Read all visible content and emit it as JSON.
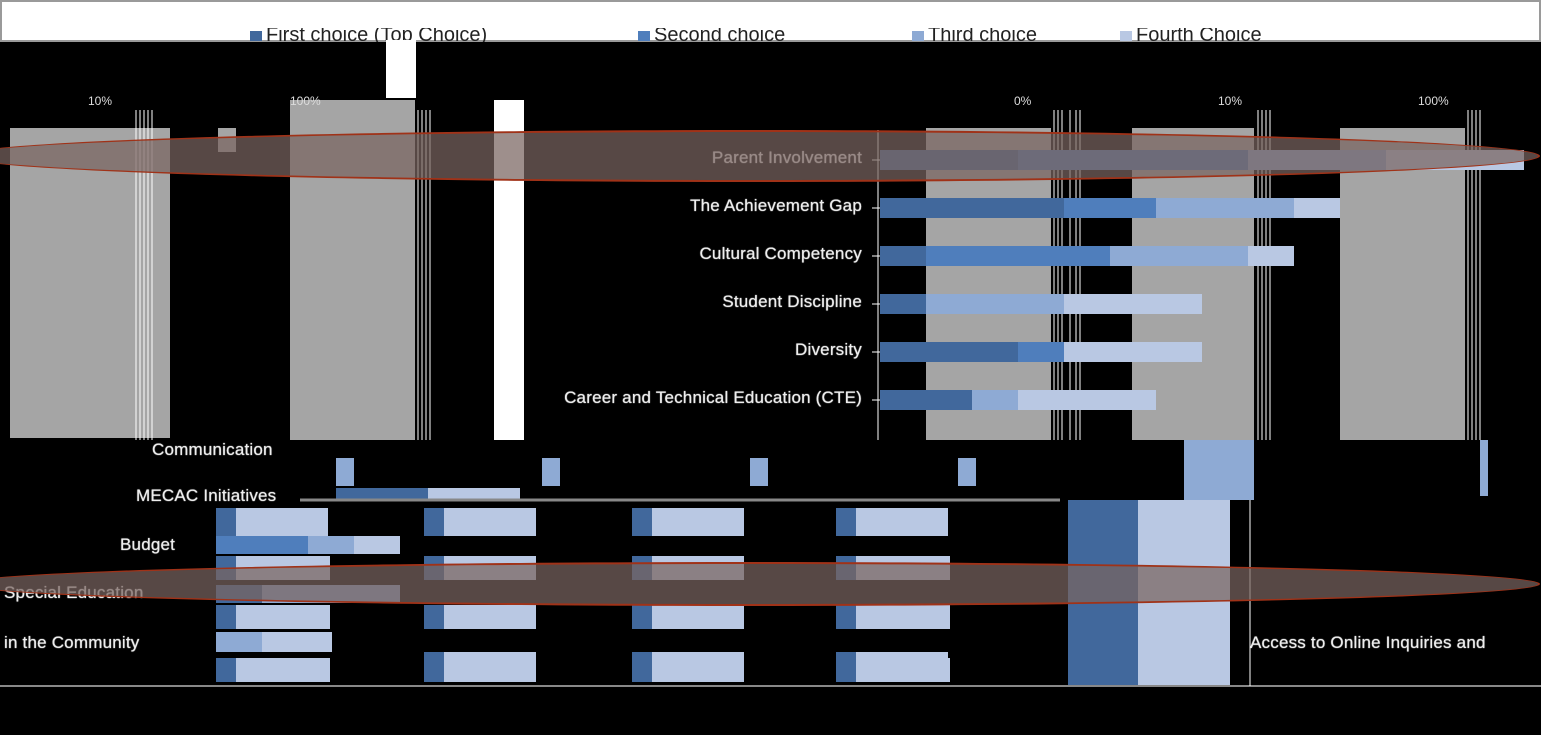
{
  "colors": {
    "first": "#41689c",
    "second": "#4f7ebc",
    "third": "#8eaad4",
    "fourth": "#b9c8e3",
    "band": "#a5a5a5",
    "highlight": "#a03218"
  },
  "legend": [
    {
      "label": "First choice (Top Choice)",
      "color": "#41689c"
    },
    {
      "label": "Second choice",
      "color": "#4f7ebc"
    },
    {
      "label": "Third choice",
      "color": "#8eaad4"
    },
    {
      "label": "Fourth Choice",
      "color": "#b9c8e3"
    }
  ],
  "axis": {
    "ticks": [
      "0%",
      "10%",
      "100%"
    ]
  },
  "chart_data": {
    "type": "bar",
    "orientation": "horizontal-stacked",
    "categories": [
      "Parent Involvement",
      "The Achievement Gap",
      "Cultural Competency",
      "Student Discipline",
      "Diversity",
      "Career and Technical Education (CTE)"
    ],
    "series": [
      {
        "name": "First choice (Top Choice)",
        "values": [
          3,
          4,
          1,
          1,
          3,
          2
        ]
      },
      {
        "name": "Second choice",
        "values": [
          5,
          2,
          4,
          0,
          1,
          0
        ]
      },
      {
        "name": "Third choice",
        "values": [
          3,
          3,
          3,
          3,
          0,
          1
        ]
      },
      {
        "name": "Fourth Choice",
        "values": [
          3,
          1,
          1,
          3,
          3,
          3
        ]
      }
    ],
    "secondary_labels": [
      "Communication",
      "MECAC Initiatives",
      "Budget",
      "Special Education",
      "in the Community",
      "Access to Online Inquiries and"
    ],
    "highlighted": [
      "Parent Involvement",
      "Special Education"
    ]
  }
}
